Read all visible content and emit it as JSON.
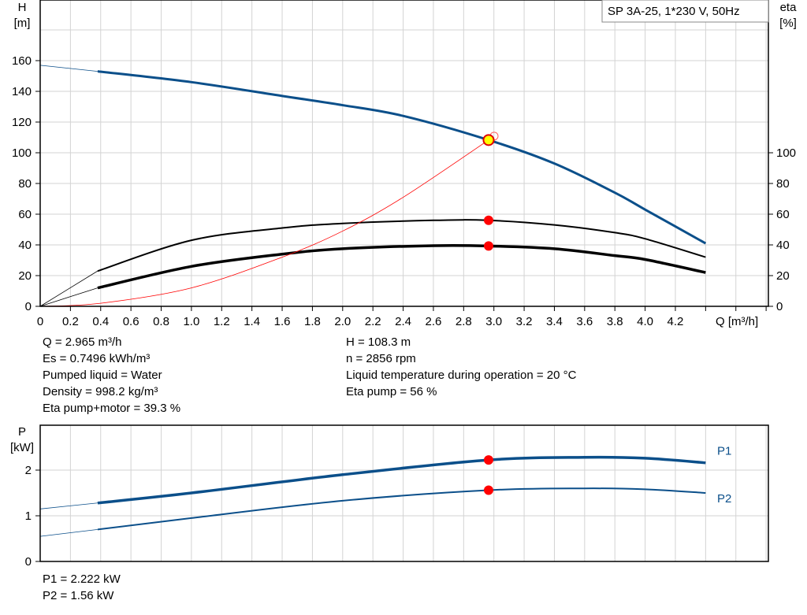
{
  "chart_data": [
    {
      "type": "line",
      "legend_box": "SP 3A-25, 1*230 V, 50Hz",
      "xlabel": "Q [m³/h]",
      "ylabel_left": [
        "H",
        "[m]"
      ],
      "ylabel_right": [
        "eta",
        "[%]"
      ],
      "xlim": [
        0,
        4.8
      ],
      "ylim_left": [
        0,
        200
      ],
      "ylim_right": [
        0,
        200
      ],
      "x_ticks": [
        "0",
        "0.2",
        "0.4",
        "0.6",
        "0.8",
        "1.0",
        "1.2",
        "1.4",
        "1.6",
        "1.8",
        "2.0",
        "2.2",
        "2.4",
        "2.6",
        "2.8",
        "3.0",
        "3.2",
        "3.4",
        "3.6",
        "3.8",
        "4.0",
        "4.2"
      ],
      "y_ticks_left": [
        "0",
        "20",
        "40",
        "60",
        "80",
        "100",
        "120",
        "140",
        "160"
      ],
      "y_ticks_right": [
        "0",
        "20",
        "40",
        "60",
        "80",
        "100"
      ],
      "grid": true,
      "series": [
        {
          "key": "H",
          "color": "#0b4f8a",
          "x": [
            0,
            0.38,
            1.0,
            1.6,
            2.0,
            2.4,
            2.965,
            3.4,
            3.8,
            4.0,
            4.4
          ],
          "y": [
            157,
            153,
            146,
            137,
            131,
            124,
            108.3,
            93,
            74,
            63,
            41
          ]
        },
        {
          "key": "eta_pump",
          "color": "#000000",
          "x": [
            0,
            0.38,
            1.0,
            1.6,
            2.0,
            2.6,
            2.965,
            3.4,
            3.8,
            4.0,
            4.4
          ],
          "y": [
            0,
            23,
            43,
            51,
            54,
            56,
            56,
            53,
            48,
            44,
            32
          ]
        },
        {
          "key": "eta_total",
          "color": "#000000",
          "x": [
            0,
            0.38,
            1.0,
            1.6,
            2.0,
            2.6,
            2.965,
            3.4,
            3.8,
            4.0,
            4.4
          ],
          "y": [
            0,
            12,
            26,
            34,
            37.5,
            39.5,
            39.3,
            37.5,
            33,
            30.5,
            22
          ]
        },
        {
          "key": "system",
          "color": "#ff0000",
          "x": [
            0,
            0.4,
            1.0,
            1.6,
            2.0,
            2.4,
            2.965
          ],
          "y": [
            0,
            2,
            12,
            32,
            49,
            71,
            108.3
          ]
        }
      ],
      "duty_point": {
        "Q": 2.965,
        "H": 108.3,
        "eta_pump": 56,
        "eta_total": 39.3
      }
    },
    {
      "type": "line",
      "ylabel": [
        "P",
        "[kW]"
      ],
      "xlim": [
        0,
        4.8
      ],
      "ylim": [
        0,
        3
      ],
      "y_ticks": [
        "0",
        "1",
        "2"
      ],
      "grid": true,
      "series": [
        {
          "name": "P1",
          "color": "#0b4f8a",
          "x": [
            0,
            0.38,
            1.0,
            2.0,
            2.965,
            3.6,
            4.0,
            4.4
          ],
          "y": [
            1.15,
            1.28,
            1.5,
            1.9,
            2.222,
            2.28,
            2.26,
            2.16
          ]
        },
        {
          "name": "P2",
          "color": "#0b4f8a",
          "x": [
            0,
            0.38,
            1.0,
            2.0,
            2.965,
            3.6,
            4.0,
            4.4
          ],
          "y": [
            0.55,
            0.7,
            0.95,
            1.33,
            1.56,
            1.6,
            1.58,
            1.5
          ]
        }
      ]
    }
  ],
  "results_left": [
    "Q = 2.965 m³/h",
    "Es = 0.7496 kWh/m³",
    "Pumped liquid = Water",
    "Density = 998.2 kg/m³",
    "Eta pump+motor = 39.3 %"
  ],
  "results_right": [
    "H = 108.3 m",
    "n = 2856 rpm",
    "Liquid temperature during operation = 20 °C",
    "Eta pump = 56 %"
  ],
  "power_results": [
    "P1 = 2.222 kW",
    "P2 = 1.56 kW"
  ]
}
